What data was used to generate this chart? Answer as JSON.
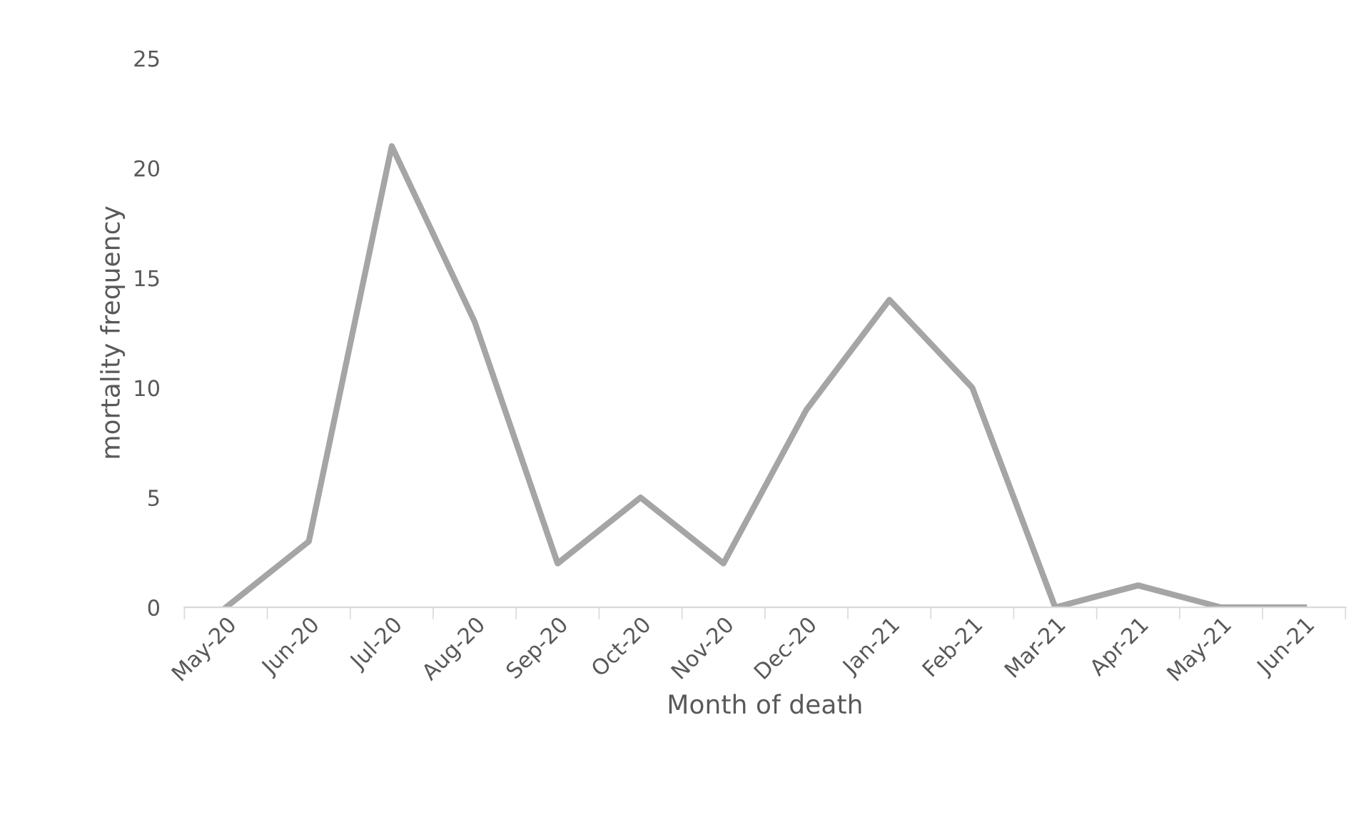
{
  "chart_data": {
    "type": "line",
    "xlabel": "Month of death",
    "ylabel": "mortality frequency",
    "categories": [
      "May-20",
      "Jun-20",
      "Jul-20",
      "Aug-20",
      "Sep-20",
      "Oct-20",
      "Nov-20",
      "Dec-20",
      "Jan-21",
      "Feb-21",
      "Mar-21",
      "Apr-21",
      "May-21",
      "Jun-21"
    ],
    "series": [
      {
        "color": "#a5a5a5",
        "values": [
          0,
          3,
          21,
          13,
          2,
          5,
          2,
          9,
          14,
          10,
          0,
          1,
          0,
          0
        ]
      }
    ],
    "ylim": [
      0,
      25
    ],
    "yticks": [
      0,
      5,
      10,
      15,
      20,
      25
    ],
    "grid": false,
    "legend": false,
    "marker": "none",
    "line_style": "solid"
  }
}
